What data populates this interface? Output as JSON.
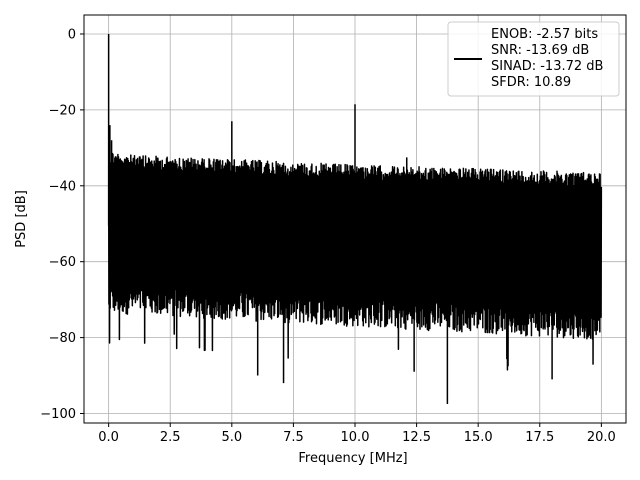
{
  "chart_data": {
    "type": "line",
    "title": "",
    "xlabel": "Frequency [MHz]",
    "ylabel": "PSD [dB]",
    "xlim": [
      -1.0,
      21.0
    ],
    "ylim": [
      -102.5,
      5.0
    ],
    "xticks": [
      0.0,
      2.5,
      5.0,
      7.5,
      10.0,
      12.5,
      15.0,
      17.5,
      20.0
    ],
    "xtick_labels": [
      "0.0",
      "2.5",
      "5.0",
      "7.5",
      "10.0",
      "12.5",
      "15.0",
      "17.5",
      "20.0"
    ],
    "yticks": [
      0,
      -20,
      -40,
      -60,
      -80,
      -100
    ],
    "ytick_labels": [
      "0",
      "−20",
      "−40",
      "−60",
      "−80",
      "−100"
    ],
    "grid": true,
    "legend_position": "top-right",
    "legend_lines": [
      "ENOB: -2.57 bits",
      "SNR: -13.69 dB",
      "SINAD: -13.72 dB",
      "SFDR: 10.89"
    ],
    "series": [
      {
        "color": "#000000",
        "noise_ceiling_db": [
          [
            0.0,
            -30.5
          ],
          [
            1.0,
            -32.0
          ],
          [
            5.0,
            -33.0
          ],
          [
            10.0,
            -34.5
          ],
          [
            15.0,
            -35.5
          ],
          [
            20.0,
            -36.5
          ]
        ],
        "noise_floor_db": [
          [
            0.0,
            -72.0
          ],
          [
            20.0,
            -79.0
          ]
        ],
        "spikes": [
          {
            "x": 0.0,
            "y": 0.0
          },
          {
            "x": 5.0,
            "y": -23.0
          },
          {
            "x": 10.0,
            "y": -18.5
          },
          {
            "x": 12.1,
            "y": -32.5
          },
          {
            "x": 13.75,
            "y": -97.5
          },
          {
            "x": 6.05,
            "y": -90.0
          },
          {
            "x": 7.1,
            "y": -92.0
          },
          {
            "x": 12.4,
            "y": -89.0
          },
          {
            "x": 18.0,
            "y": -91.0
          }
        ]
      }
    ]
  }
}
